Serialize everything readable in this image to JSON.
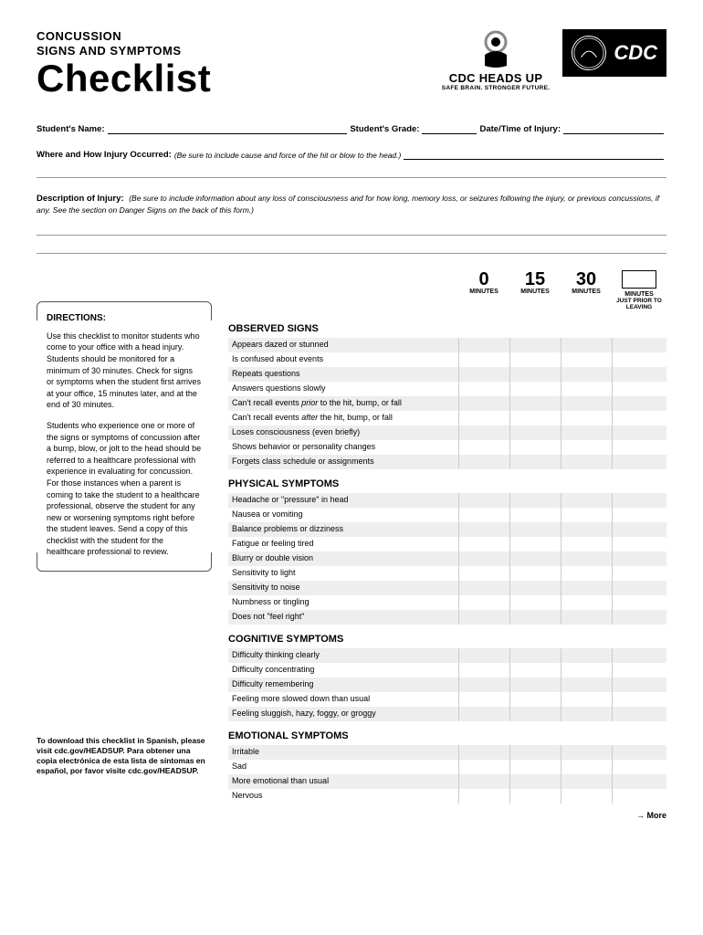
{
  "header": {
    "pretitle_line1": "CONCUSSION",
    "pretitle_line2": "SIGNS AND SYMPTOMS",
    "title": "Checklist",
    "headsup_title": "CDC HEADS UP",
    "headsup_sub": "SAFE BRAIN. STRONGER FUTURE.",
    "cdc_text": "CDC"
  },
  "form": {
    "student_name": "Student's Name:",
    "student_grade": "Student's Grade:",
    "date_time": "Date/Time of Injury:",
    "where_how": "Where and How Injury Occurred:",
    "where_how_hint": "(Be sure to include cause and force of the hit or blow to the head.)",
    "desc": "Description of Injury:",
    "desc_hint": "(Be sure to include information about any loss of consciousness and for how long, memory loss, or seizures following the injury, or previous concussions, if any. See the section on Danger Signs on the back of this form.)"
  },
  "directions": {
    "title": "DIRECTIONS:",
    "p1": "Use this checklist to monitor students who come to your office with a head injury. Students should be monitored for a minimum of 30 minutes. Check for signs or symptoms when the student first arrives at your office, 15 minutes later, and at the end of 30 minutes.",
    "p2": "Students who experience one or more of the signs or symptoms of concussion after a bump, blow, or jolt to the head should be referred to a healthcare professional with experience in evaluating for concussion. For those instances when a parent is coming to take the student to a healthcare professional, observe the student for any new or worsening symptoms right before the student leaves. Send a copy of this checklist with the student for the healthcare professional to review."
  },
  "footer_note": "To download this checklist in Spanish, please visit cdc.gov/HEADSUP. Para obtener una copia electrónica de esta lista de síntomas en español, por favor visite cdc.gov/HEADSUP.",
  "time_cols": [
    {
      "num": "0",
      "word": "MINUTES"
    },
    {
      "num": "15",
      "word": "MINUTES"
    },
    {
      "num": "30",
      "word": "MINUTES"
    }
  ],
  "time_last": {
    "word": "MINUTES",
    "sub": "JUST PRIOR TO LEAVING"
  },
  "categories": [
    {
      "title": "OBSERVED SIGNS",
      "rows": [
        "Appears dazed or stunned",
        "Is confused about events",
        "Repeats questions",
        "Answers questions slowly",
        "Can't recall events <em>prior</em> to the hit, bump, or fall",
        "Can't recall events <em>after</em> the hit, bump, or fall",
        "Loses consciousness (even briefly)",
        "Shows behavior or personality changes",
        "Forgets class schedule or assignments"
      ]
    },
    {
      "title": "PHYSICAL SYMPTOMS",
      "rows": [
        "Headache or \"pressure\" in head",
        "Nausea or vomiting",
        "Balance problems or dizziness",
        "Fatigue or feeling tired",
        "Blurry or double vision",
        "Sensitivity to light",
        "Sensitivity to noise",
        "Numbness or tingling",
        "Does not \"feel right\""
      ]
    },
    {
      "title": "COGNITIVE SYMPTOMS",
      "rows": [
        "Difficulty thinking clearly",
        "Difficulty concentrating",
        "Difficulty remembering",
        "Feeling more slowed down than usual",
        "Feeling sluggish, hazy, foggy, or groggy"
      ]
    },
    {
      "title": "EMOTIONAL SYMPTOMS",
      "rows": [
        "Irritable",
        "Sad",
        "More emotional than usual",
        "Nervous"
      ]
    }
  ],
  "more": "More"
}
